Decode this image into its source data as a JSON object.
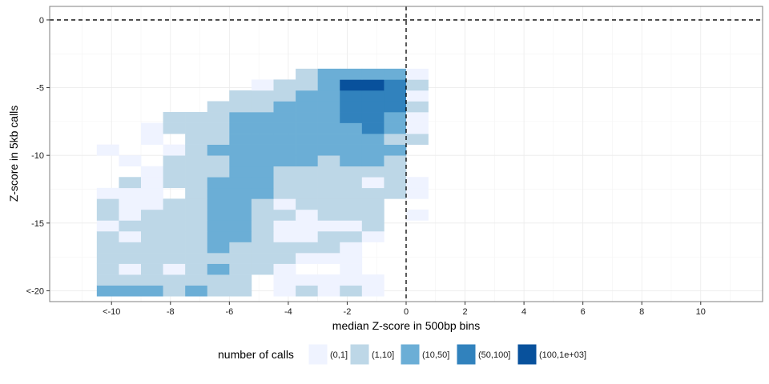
{
  "chart_data": {
    "type": "heatmap",
    "xlabel": "median Z-score in 500bp bins",
    "ylabel": "Z-score in 5kb calls",
    "xlim": [
      -12.1,
      12.1
    ],
    "ylim": [
      -20.8,
      1.0
    ],
    "x_ticks": [
      {
        "value": -10,
        "label": "<-10"
      },
      {
        "value": -8,
        "label": "-8"
      },
      {
        "value": -6,
        "label": "-6"
      },
      {
        "value": -4,
        "label": "-4"
      },
      {
        "value": -2,
        "label": "-2"
      },
      {
        "value": 0,
        "label": "0"
      },
      {
        "value": 2,
        "label": "2"
      },
      {
        "value": 4,
        "label": "4"
      },
      {
        "value": 6,
        "label": "6"
      },
      {
        "value": 8,
        "label": "8"
      },
      {
        "value": 10,
        "label": "10"
      }
    ],
    "y_ticks": [
      {
        "value": 0,
        "label": "0"
      },
      {
        "value": -5,
        "label": "-5"
      },
      {
        "value": -10,
        "label": "-10"
      },
      {
        "value": -15,
        "label": "-15"
      },
      {
        "value": -20,
        "label": "<-20"
      }
    ],
    "reference_lines": {
      "x": 0,
      "y": 0,
      "style": "dashed"
    },
    "grid": true,
    "legend": {
      "title": "number of calls",
      "placement": "bottom",
      "entries": [
        {
          "label": "(0,1]",
          "color": "#eff3ff"
        },
        {
          "label": "(1,10]",
          "color": "#bdd7e7"
        },
        {
          "label": "(10,50]",
          "color": "#6baed6"
        },
        {
          "label": "(50,100]",
          "color": "#3182bd"
        },
        {
          "label": "(100,1e+03]",
          "color": "#08519c"
        }
      ]
    },
    "bin_size": {
      "x": 0.75,
      "y": 0.8
    },
    "bin_x_start": -10.5,
    "bin_y_start": -20.4,
    "cells": [
      [
        -20.0,
        -10.125,
        2
      ],
      [
        -20.0,
        -9.375,
        2
      ],
      [
        -20.0,
        -8.625,
        2
      ],
      [
        -20.0,
        -7.875,
        1
      ],
      [
        -20.0,
        -7.125,
        2
      ],
      [
        -20.0,
        -6.375,
        1
      ],
      [
        -20.0,
        -5.625,
        1
      ],
      [
        -20.0,
        -4.125,
        0
      ],
      [
        -20.0,
        -3.375,
        1
      ],
      [
        -20.0,
        -2.625,
        0
      ],
      [
        -20.0,
        -1.875,
        1
      ],
      [
        -20.0,
        -1.125,
        0
      ],
      [
        -19.2,
        -10.125,
        1
      ],
      [
        -19.2,
        -9.375,
        1
      ],
      [
        -19.2,
        -8.625,
        1
      ],
      [
        -19.2,
        -7.875,
        1
      ],
      [
        -19.2,
        -7.125,
        1
      ],
      [
        -19.2,
        -6.375,
        1
      ],
      [
        -19.2,
        -5.625,
        1
      ],
      [
        -19.2,
        -4.125,
        0
      ],
      [
        -19.2,
        -3.375,
        0
      ],
      [
        -19.2,
        -2.625,
        0
      ],
      [
        -19.2,
        -1.875,
        0
      ],
      [
        -19.2,
        -1.125,
        0
      ],
      [
        -18.4,
        -10.125,
        1
      ],
      [
        -18.4,
        -9.375,
        0
      ],
      [
        -18.4,
        -8.625,
        1
      ],
      [
        -18.4,
        -7.875,
        0
      ],
      [
        -18.4,
        -7.125,
        1
      ],
      [
        -18.4,
        -6.375,
        2
      ],
      [
        -18.4,
        -5.625,
        1
      ],
      [
        -18.4,
        -4.875,
        1
      ],
      [
        -18.4,
        -4.125,
        0
      ],
      [
        -18.4,
        -1.875,
        0
      ],
      [
        -17.6,
        -10.125,
        1
      ],
      [
        -17.6,
        -9.375,
        1
      ],
      [
        -17.6,
        -8.625,
        1
      ],
      [
        -17.6,
        -7.875,
        1
      ],
      [
        -17.6,
        -7.125,
        1
      ],
      [
        -17.6,
        -6.375,
        1
      ],
      [
        -17.6,
        -5.625,
        1
      ],
      [
        -17.6,
        -4.875,
        1
      ],
      [
        -17.6,
        -4.125,
        1
      ],
      [
        -17.6,
        -3.375,
        0
      ],
      [
        -17.6,
        -2.625,
        0
      ],
      [
        -17.6,
        -1.875,
        0
      ],
      [
        -16.8,
        -10.125,
        1
      ],
      [
        -16.8,
        -9.375,
        1
      ],
      [
        -16.8,
        -8.625,
        1
      ],
      [
        -16.8,
        -7.875,
        1
      ],
      [
        -16.8,
        -7.125,
        1
      ],
      [
        -16.8,
        -6.375,
        2
      ],
      [
        -16.8,
        -5.625,
        1
      ],
      [
        -16.8,
        -4.875,
        1
      ],
      [
        -16.8,
        -4.125,
        1
      ],
      [
        -16.8,
        -3.375,
        1
      ],
      [
        -16.8,
        -2.625,
        1
      ],
      [
        -16.8,
        -1.875,
        0
      ],
      [
        -16.0,
        -10.125,
        1
      ],
      [
        -16.0,
        -9.375,
        0
      ],
      [
        -16.0,
        -8.625,
        1
      ],
      [
        -16.0,
        -7.875,
        1
      ],
      [
        -16.0,
        -7.125,
        1
      ],
      [
        -16.0,
        -6.375,
        2
      ],
      [
        -16.0,
        -5.625,
        2
      ],
      [
        -16.0,
        -4.875,
        1
      ],
      [
        -16.0,
        -4.125,
        0
      ],
      [
        -16.0,
        -3.375,
        0
      ],
      [
        -16.0,
        -2.625,
        1
      ],
      [
        -16.0,
        -1.875,
        1
      ],
      [
        -16.0,
        -1.125,
        0
      ],
      [
        -15.2,
        -10.125,
        0
      ],
      [
        -15.2,
        -9.375,
        1
      ],
      [
        -15.2,
        -8.625,
        1
      ],
      [
        -15.2,
        -7.875,
        1
      ],
      [
        -15.2,
        -7.125,
        1
      ],
      [
        -15.2,
        -6.375,
        2
      ],
      [
        -15.2,
        -5.625,
        2
      ],
      [
        -15.2,
        -4.875,
        1
      ],
      [
        -15.2,
        -4.125,
        0
      ],
      [
        -15.2,
        -3.375,
        0
      ],
      [
        -15.2,
        -2.625,
        0
      ],
      [
        -15.2,
        -1.875,
        0
      ],
      [
        -15.2,
        -1.125,
        1
      ],
      [
        -14.4,
        -10.125,
        1
      ],
      [
        -14.4,
        -9.375,
        0
      ],
      [
        -14.4,
        -8.625,
        1
      ],
      [
        -14.4,
        -7.875,
        1
      ],
      [
        -14.4,
        -7.125,
        1
      ],
      [
        -14.4,
        -6.375,
        2
      ],
      [
        -14.4,
        -5.625,
        2
      ],
      [
        -14.4,
        -4.875,
        1
      ],
      [
        -14.4,
        -4.125,
        1
      ],
      [
        -14.4,
        -3.375,
        0
      ],
      [
        -14.4,
        -2.625,
        1
      ],
      [
        -14.4,
        -1.875,
        1
      ],
      [
        -14.4,
        -1.125,
        1
      ],
      [
        -14.4,
        0.375,
        0
      ],
      [
        -13.6,
        -10.125,
        1
      ],
      [
        -13.6,
        -9.375,
        0
      ],
      [
        -13.6,
        -8.625,
        0
      ],
      [
        -13.6,
        -7.875,
        1
      ],
      [
        -13.6,
        -7.125,
        1
      ],
      [
        -13.6,
        -6.375,
        2
      ],
      [
        -13.6,
        -5.625,
        2
      ],
      [
        -13.6,
        -4.875,
        1
      ],
      [
        -13.6,
        -4.125,
        0
      ],
      [
        -13.6,
        -3.375,
        1
      ],
      [
        -13.6,
        -2.625,
        1
      ],
      [
        -13.6,
        -1.875,
        1
      ],
      [
        -13.6,
        -1.125,
        1
      ],
      [
        -12.8,
        -10.125,
        0
      ],
      [
        -12.8,
        -9.375,
        0
      ],
      [
        -12.8,
        -8.625,
        0
      ],
      [
        -12.8,
        -7.125,
        1
      ],
      [
        -12.8,
        -6.375,
        2
      ],
      [
        -12.8,
        -5.625,
        2
      ],
      [
        -12.8,
        -4.875,
        2
      ],
      [
        -12.8,
        -4.125,
        1
      ],
      [
        -12.8,
        -3.375,
        1
      ],
      [
        -12.8,
        -2.625,
        1
      ],
      [
        -12.8,
        -1.875,
        1
      ],
      [
        -12.8,
        -1.125,
        1
      ],
      [
        -12.8,
        -0.375,
        1
      ],
      [
        -12.8,
        0.375,
        0
      ],
      [
        -12.0,
        -9.375,
        1
      ],
      [
        -12.0,
        -8.625,
        0
      ],
      [
        -12.0,
        -7.875,
        1
      ],
      [
        -12.0,
        -7.125,
        1
      ],
      [
        -12.0,
        -6.375,
        2
      ],
      [
        -12.0,
        -5.625,
        2
      ],
      [
        -12.0,
        -4.875,
        2
      ],
      [
        -12.0,
        -4.125,
        1
      ],
      [
        -12.0,
        -3.375,
        1
      ],
      [
        -12.0,
        -2.625,
        1
      ],
      [
        -12.0,
        -1.875,
        1
      ],
      [
        -12.0,
        -1.125,
        0
      ],
      [
        -12.0,
        -0.375,
        1
      ],
      [
        -12.0,
        0.375,
        0
      ],
      [
        -11.2,
        -8.625,
        0
      ],
      [
        -11.2,
        -7.875,
        1
      ],
      [
        -11.2,
        -7.125,
        1
      ],
      [
        -11.2,
        -6.375,
        1
      ],
      [
        -11.2,
        -5.625,
        2
      ],
      [
        -11.2,
        -4.875,
        2
      ],
      [
        -11.2,
        -4.125,
        1
      ],
      [
        -11.2,
        -3.375,
        1
      ],
      [
        -11.2,
        -2.625,
        1
      ],
      [
        -11.2,
        -1.875,
        1
      ],
      [
        -11.2,
        -1.125,
        1
      ],
      [
        -11.2,
        -0.375,
        1
      ],
      [
        -10.4,
        -9.375,
        0
      ],
      [
        -10.4,
        -7.875,
        1
      ],
      [
        -10.4,
        -7.125,
        1
      ],
      [
        -10.4,
        -6.375,
        1
      ],
      [
        -10.4,
        -5.625,
        2
      ],
      [
        -10.4,
        -4.875,
        2
      ],
      [
        -10.4,
        -4.125,
        2
      ],
      [
        -10.4,
        -3.375,
        2
      ],
      [
        -10.4,
        -2.625,
        1
      ],
      [
        -10.4,
        -1.875,
        2
      ],
      [
        -10.4,
        -1.125,
        2
      ],
      [
        -10.4,
        -0.375,
        1
      ],
      [
        -9.6,
        -10.125,
        0
      ],
      [
        -9.6,
        -7.875,
        0
      ],
      [
        -9.6,
        -7.125,
        1
      ],
      [
        -9.6,
        -6.375,
        2
      ],
      [
        -9.6,
        -5.625,
        2
      ],
      [
        -9.6,
        -4.875,
        2
      ],
      [
        -9.6,
        -4.125,
        2
      ],
      [
        -9.6,
        -3.375,
        2
      ],
      [
        -9.6,
        -2.625,
        2
      ],
      [
        -9.6,
        -1.875,
        2
      ],
      [
        -9.6,
        -1.125,
        2
      ],
      [
        -9.6,
        -0.375,
        2
      ],
      [
        -8.8,
        -8.625,
        0
      ],
      [
        -8.8,
        -7.125,
        1
      ],
      [
        -8.8,
        -6.375,
        1
      ],
      [
        -8.8,
        -5.625,
        2
      ],
      [
        -8.8,
        -4.875,
        2
      ],
      [
        -8.8,
        -4.125,
        2
      ],
      [
        -8.8,
        -3.375,
        2
      ],
      [
        -8.8,
        -2.625,
        2
      ],
      [
        -8.8,
        -1.875,
        2
      ],
      [
        -8.8,
        -1.125,
        2
      ],
      [
        -8.8,
        -0.375,
        1
      ],
      [
        -8.8,
        0.375,
        1
      ],
      [
        -8.0,
        -8.625,
        0
      ],
      [
        -8.0,
        -7.875,
        1
      ],
      [
        -8.0,
        -7.125,
        1
      ],
      [
        -8.0,
        -6.375,
        1
      ],
      [
        -8.0,
        -5.625,
        2
      ],
      [
        -8.0,
        -4.875,
        2
      ],
      [
        -8.0,
        -4.125,
        2
      ],
      [
        -8.0,
        -3.375,
        2
      ],
      [
        -8.0,
        -2.625,
        2
      ],
      [
        -8.0,
        -1.875,
        2
      ],
      [
        -8.0,
        -1.125,
        3
      ],
      [
        -8.0,
        -0.375,
        2
      ],
      [
        -8.0,
        0.375,
        0
      ],
      [
        -7.2,
        -7.875,
        1
      ],
      [
        -7.2,
        -7.125,
        1
      ],
      [
        -7.2,
        -6.375,
        1
      ],
      [
        -7.2,
        -5.625,
        2
      ],
      [
        -7.2,
        -4.875,
        2
      ],
      [
        -7.2,
        -4.125,
        2
      ],
      [
        -7.2,
        -3.375,
        2
      ],
      [
        -7.2,
        -2.625,
        2
      ],
      [
        -7.2,
        -1.875,
        3
      ],
      [
        -7.2,
        -1.125,
        3
      ],
      [
        -7.2,
        -0.375,
        2
      ],
      [
        -7.2,
        0.375,
        0
      ],
      [
        -6.4,
        -6.375,
        1
      ],
      [
        -6.4,
        -5.625,
        1
      ],
      [
        -6.4,
        -4.875,
        1
      ],
      [
        -6.4,
        -4.125,
        2
      ],
      [
        -6.4,
        -3.375,
        2
      ],
      [
        -6.4,
        -2.625,
        2
      ],
      [
        -6.4,
        -1.875,
        3
      ],
      [
        -6.4,
        -1.125,
        3
      ],
      [
        -6.4,
        -0.375,
        3
      ],
      [
        -6.4,
        0.375,
        1
      ],
      [
        -5.6,
        -5.625,
        1
      ],
      [
        -5.6,
        -4.875,
        1
      ],
      [
        -5.6,
        -4.125,
        1
      ],
      [
        -5.6,
        -3.375,
        2
      ],
      [
        -5.6,
        -2.625,
        2
      ],
      [
        -5.6,
        -1.875,
        3
      ],
      [
        -5.6,
        -1.125,
        3
      ],
      [
        -5.6,
        -0.375,
        3
      ],
      [
        -5.6,
        0.375,
        0
      ],
      [
        -4.8,
        -4.875,
        0
      ],
      [
        -4.8,
        -4.125,
        1
      ],
      [
        -4.8,
        -3.375,
        1
      ],
      [
        -4.8,
        -2.625,
        2
      ],
      [
        -4.8,
        -1.875,
        4
      ],
      [
        -4.8,
        -1.125,
        4
      ],
      [
        -4.8,
        -0.375,
        3
      ],
      [
        -4.8,
        0.375,
        1
      ],
      [
        -4.0,
        -3.375,
        1
      ],
      [
        -4.0,
        -2.625,
        2
      ],
      [
        -4.0,
        -1.875,
        2
      ],
      [
        -4.0,
        -1.125,
        2
      ],
      [
        -4.0,
        -0.375,
        2
      ],
      [
        -4.0,
        0.375,
        0
      ]
    ]
  }
}
